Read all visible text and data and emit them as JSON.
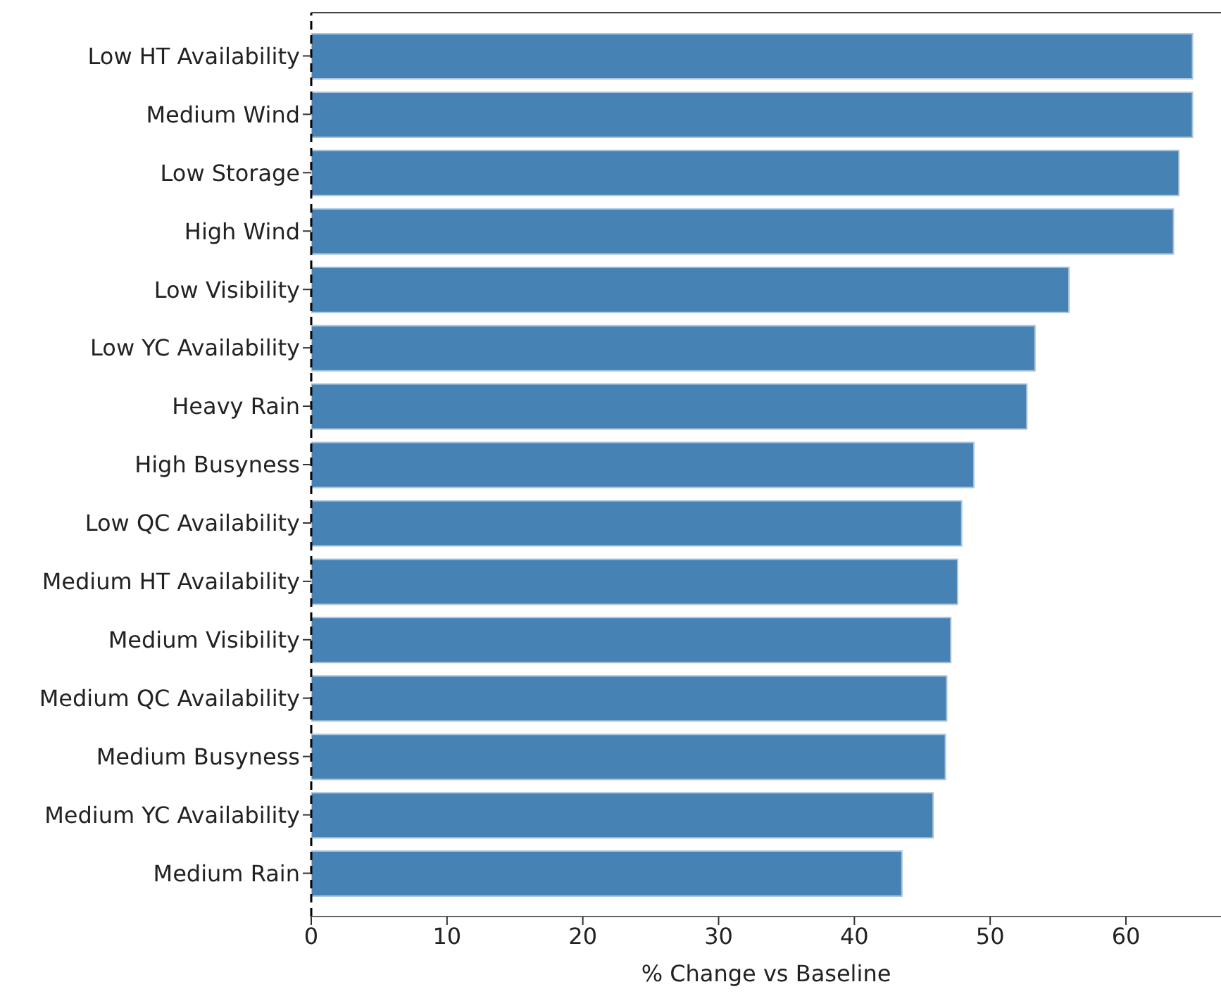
{
  "chart_data": {
    "type": "bar",
    "orientation": "horizontal",
    "xlabel": "% Change vs Baseline",
    "categories": [
      "Low HT Availability",
      "Medium Wind",
      "Low Storage",
      "High Wind",
      "Low Visibility",
      "Low YC Availability",
      "Heavy Rain",
      "High Busyness",
      "Low QC Availability",
      "Medium HT Availability",
      "Medium Visibility",
      "Medium QC Availability",
      "Medium Busyness",
      "Medium YC Availability",
      "Medium Rain"
    ],
    "values": [
      64.9,
      64.9,
      63.9,
      63.5,
      55.8,
      53.3,
      52.7,
      48.8,
      47.9,
      47.6,
      47.1,
      46.8,
      46.7,
      45.8,
      43.5
    ],
    "color": "#4682b4",
    "xlim": [
      0,
      67
    ],
    "xticks": [
      0,
      10,
      20,
      30,
      40,
      50,
      60
    ],
    "grid": false,
    "ref_lines": [
      {
        "axis": "x",
        "value": 0,
        "color": "#000000",
        "line_style": "dashed"
      }
    ]
  }
}
